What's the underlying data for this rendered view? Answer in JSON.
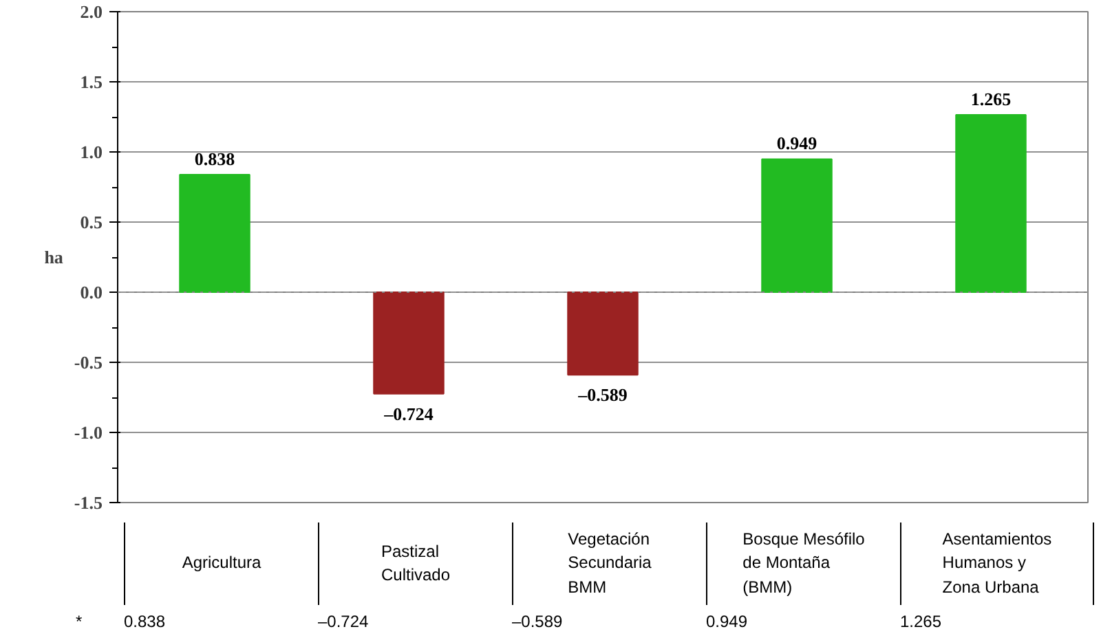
{
  "chart_data": {
    "type": "bar",
    "ylabel": "ha",
    "categories": [
      "Agricultura",
      "Pastizal\nCultivado",
      "Vegetación\nSecundaria\nBMM",
      "Bosque Mesófilo\nde Montaña\n(BMM)",
      "Asentamientos\nHumanos y\nZona Urbana"
    ],
    "values": [
      0.838,
      -0.724,
      -0.589,
      0.949,
      1.265
    ],
    "colors": [
      "#22bb22",
      "#9b2222",
      "#9b2222",
      "#22bb22",
      "#22bb22"
    ],
    "value_labels": [
      "0.838",
      "–0.724",
      "–0.589",
      "0.949",
      "1.265"
    ],
    "data_labels": true,
    "ylim": [
      -1.5,
      2.0
    ],
    "yticks": [
      {
        "value": -1.5,
        "label": "-1.5"
      },
      {
        "value": -1.0,
        "label": "-1.0"
      },
      {
        "value": -0.5,
        "label": "-0.5"
      },
      {
        "value": 0,
        "label": "0.0"
      },
      {
        "value": 0.5,
        "label": "0.5"
      },
      {
        "value": 1.0,
        "label": "1.0"
      },
      {
        "value": 1.5,
        "label": "1.5"
      },
      {
        "value": 2.0,
        "label": "2.0"
      }
    ],
    "grid": "y",
    "ref_lines": [
      {
        "axis": "y",
        "value": 0,
        "line_style": "dotted",
        "color": "#808080"
      }
    ],
    "annotations": [
      "*"
    ],
    "legend": false
  }
}
